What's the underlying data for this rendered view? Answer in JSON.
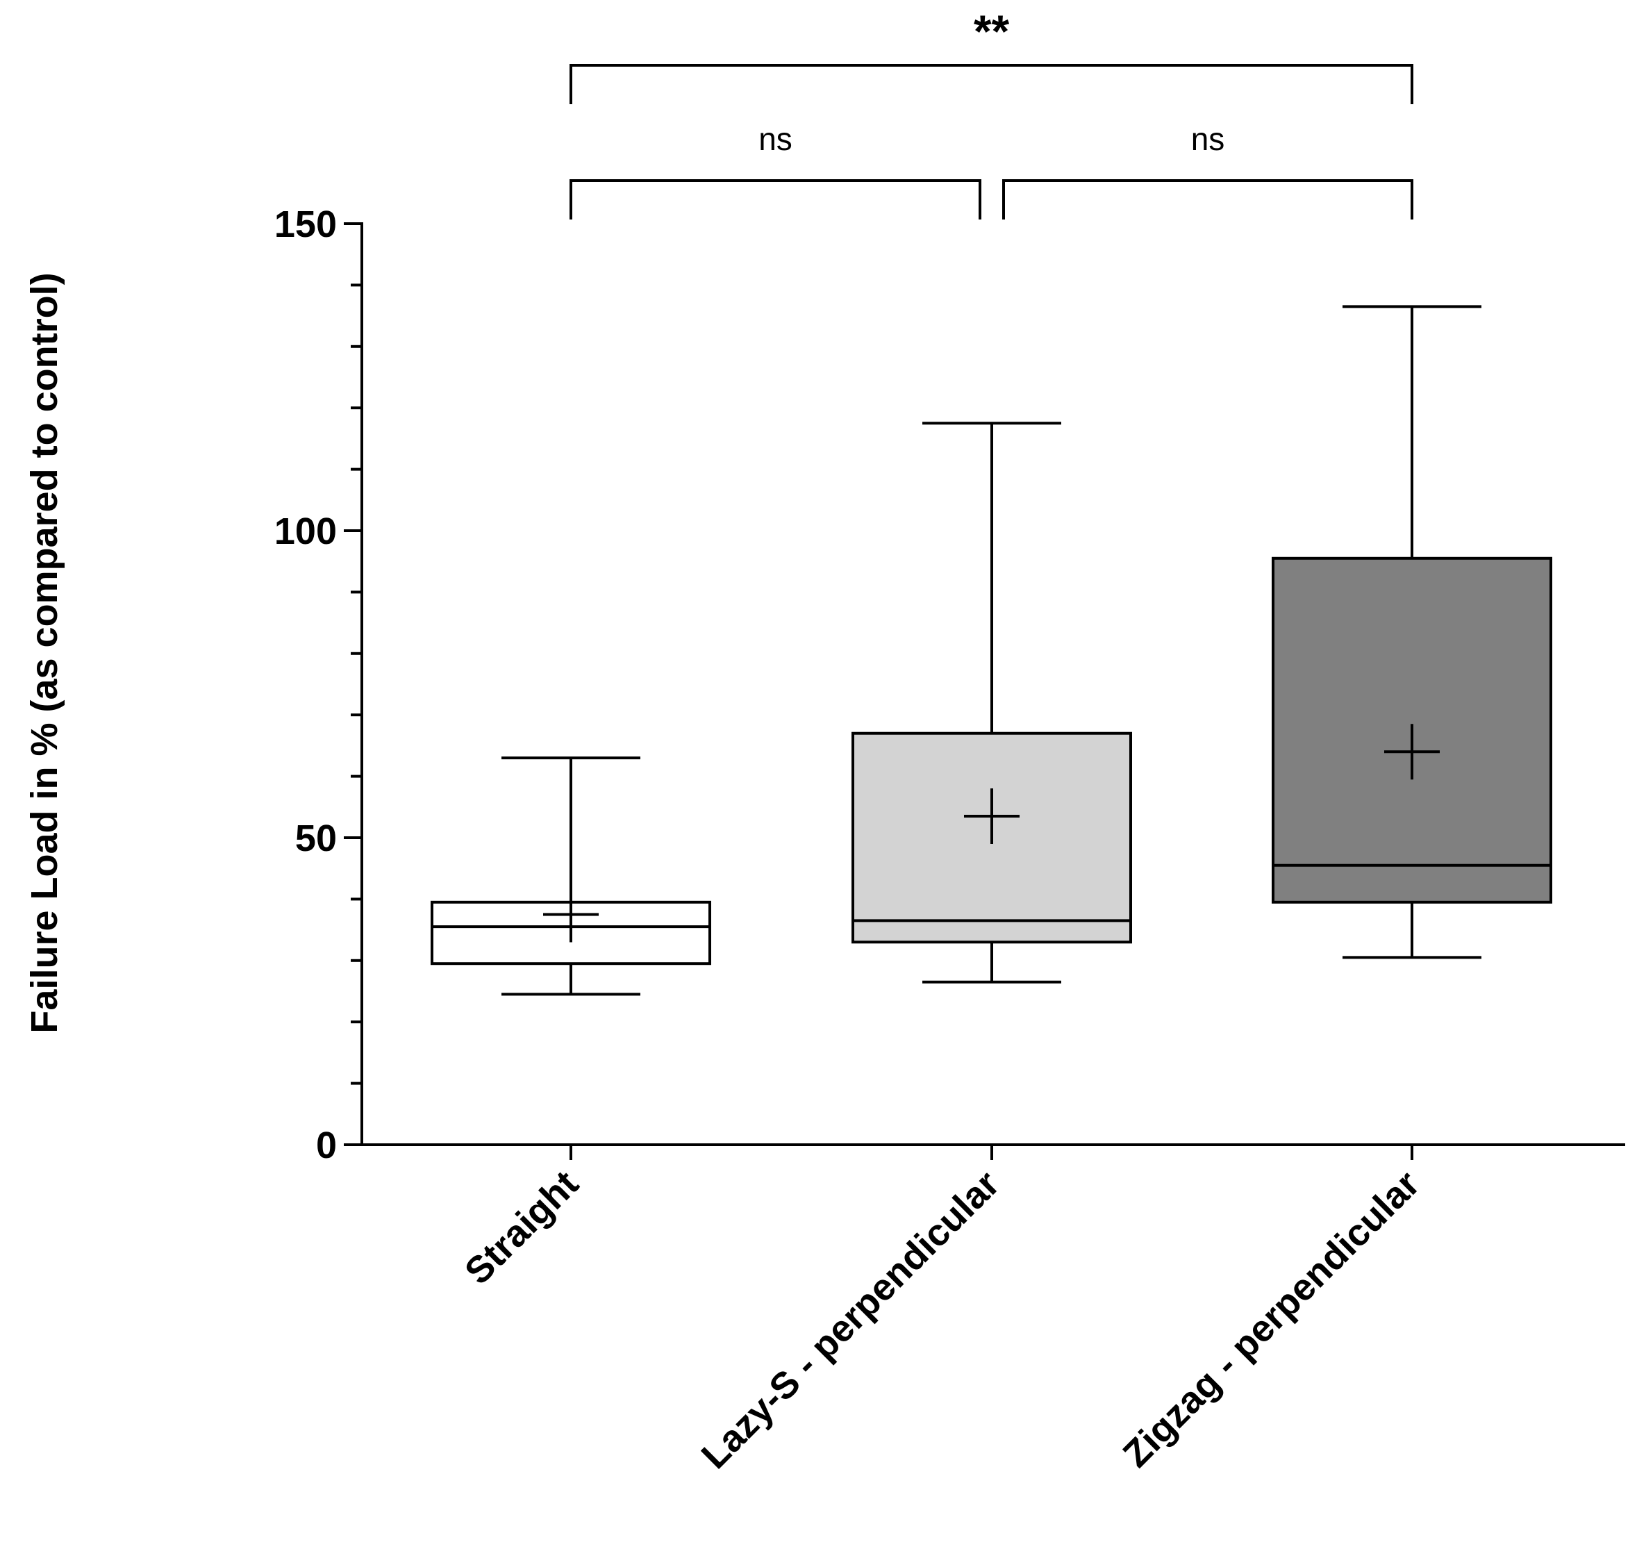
{
  "chart_data": {
    "type": "box",
    "title": "",
    "xlabel": "",
    "ylabel": "Failure Load in % (as compared to control)",
    "ylim": [
      0,
      150
    ],
    "yticks_major": [
      0,
      50,
      100,
      150
    ],
    "ytick_labels": [
      "0",
      "50",
      "100",
      "150"
    ],
    "yminor_step": 10,
    "categories": [
      "Straight",
      "Lazy-S - perpendicular",
      "Zigzag - perpendicular"
    ],
    "boxes": [
      {
        "name": "Straight",
        "min": 24.5,
        "q1": 29.5,
        "median": 35.5,
        "q3": 39.5,
        "max": 63,
        "mean": 37.5,
        "fill": "#ffffff"
      },
      {
        "name": "Lazy-S - perpendicular",
        "min": 26.5,
        "q1": 33,
        "median": 36.5,
        "q3": 67,
        "max": 117.5,
        "mean": 53.5,
        "fill": "#d3d3d3"
      },
      {
        "name": "Zigzag - perpendicular",
        "min": 30.5,
        "q1": 39.5,
        "median": 45.5,
        "q3": 95.5,
        "max": 136.5,
        "mean": 64,
        "fill": "#808080"
      }
    ],
    "significance": [
      {
        "from": 0,
        "to": 1,
        "label": "ns"
      },
      {
        "from": 1,
        "to": 2,
        "label": "ns"
      },
      {
        "from": 0,
        "to": 2,
        "label": "**"
      }
    ]
  }
}
